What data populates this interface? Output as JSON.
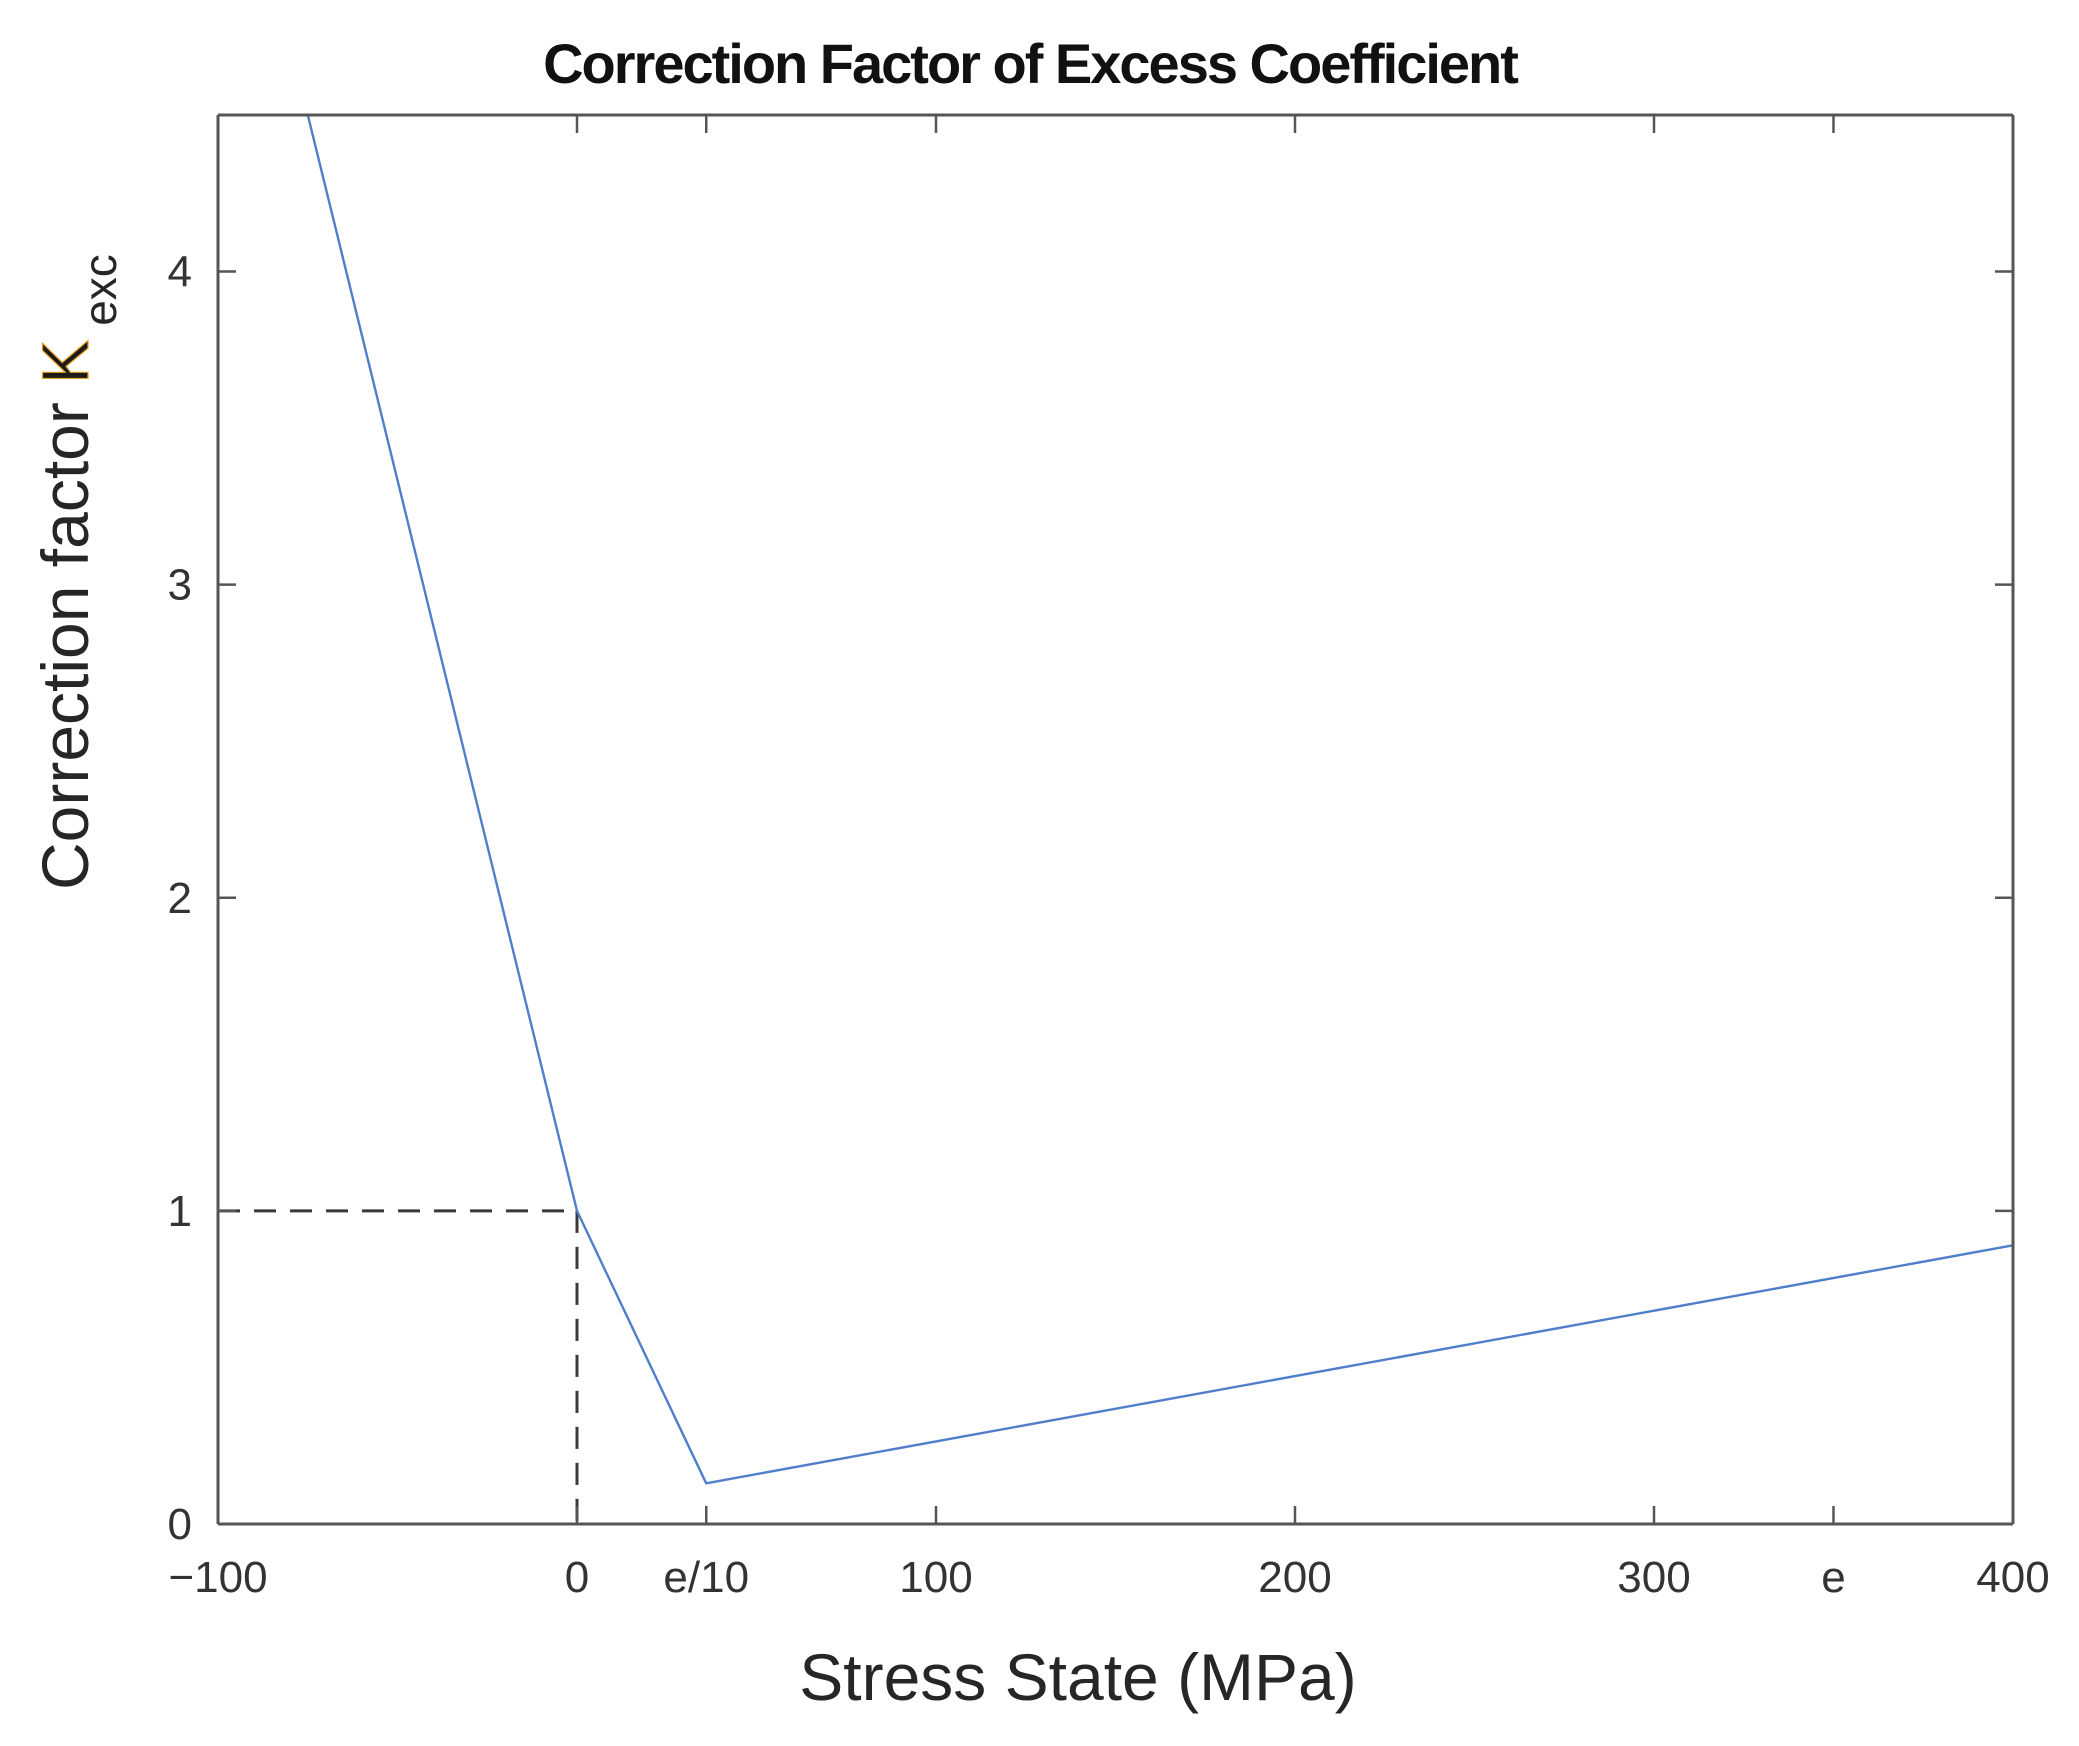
{
  "chart_data": {
    "type": "line",
    "title": "Correction Factor of Excess Coefficient",
    "xlabel": "Stress State (MPa)",
    "ylabel": {
      "main": "Correction factor ",
      "symbol": "K",
      "subscript": "exc"
    },
    "xlim": [
      -100,
      400
    ],
    "ylim": [
      0,
      4.5
    ],
    "xticks": [
      {
        "value": -100,
        "label": "−100"
      },
      {
        "value": 0,
        "label": "0"
      },
      {
        "value": 36,
        "label": "e/10"
      },
      {
        "value": 100,
        "label": "100"
      },
      {
        "value": 200,
        "label": "200"
      },
      {
        "value": 300,
        "label": "300"
      },
      {
        "value": 350,
        "label": "e"
      },
      {
        "value": 400,
        "label": "400"
      }
    ],
    "yticks": [
      {
        "value": 0,
        "label": "0"
      },
      {
        "value": 1,
        "label": "1"
      },
      {
        "value": 2,
        "label": "2"
      },
      {
        "value": 3,
        "label": "3"
      },
      {
        "value": 4,
        "label": "4"
      }
    ],
    "grid": false,
    "box": true,
    "series": [
      {
        "style": "solid",
        "color": "#4f7fcc",
        "points": [
          [
            -75,
            4.5
          ],
          [
            0,
            1.0
          ],
          [
            36,
            0.13
          ],
          [
            400,
            0.89
          ]
        ]
      }
    ],
    "reference_lines": [
      {
        "style": "dashed",
        "color": "#3a3a3a",
        "points": [
          [
            -100,
            1
          ],
          [
            0,
            1
          ]
        ]
      },
      {
        "style": "dashed",
        "color": "#3a3a3a",
        "points": [
          [
            0,
            1
          ],
          [
            0,
            0
          ]
        ]
      }
    ]
  },
  "colors": {
    "axis": "#555555",
    "series": "#4f7fcc",
    "k_symbol": "#1a1a1a",
    "k_symbol_accent": "#e8a020"
  }
}
